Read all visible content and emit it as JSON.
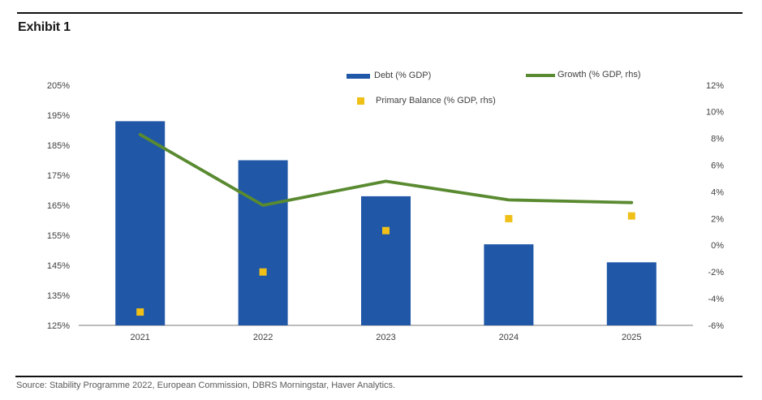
{
  "header": {
    "title": "Exhibit 1"
  },
  "footer": {
    "source": "Source: Stability Programme 2022, European Commission, DBRS Morningstar, Haver Analytics."
  },
  "legend": {
    "debt_label": "Debt (% GDP)",
    "growth_label": "Growth (% GDP, rhs)",
    "primary_balance_label": "Primary Balance (% GDP, rhs)"
  },
  "colors": {
    "bar_blue": "#2057A7",
    "line_green": "#598A30",
    "marker_yellow": "#F0C019",
    "axis_line": "#A6A6A6",
    "tick_text": "#404040",
    "rule_black": "#111111"
  },
  "chart_data": {
    "type": "combo (bar + line + scatter), dual axis",
    "title": "",
    "categories": [
      "2021",
      "2022",
      "2023",
      "2024",
      "2025"
    ],
    "series": [
      {
        "name": "Debt (% GDP)",
        "type": "bar",
        "axis": "left",
        "values": [
          193,
          180,
          168,
          152,
          146
        ]
      },
      {
        "name": "Growth (% GDP, rhs)",
        "type": "line",
        "axis": "right",
        "values": [
          8.3,
          3.0,
          4.8,
          3.4,
          3.2
        ]
      },
      {
        "name": "Primary Balance (% GDP, rhs)",
        "type": "scatter",
        "axis": "right",
        "values": [
          -5.0,
          -2.0,
          1.1,
          2.0,
          2.2
        ]
      }
    ],
    "left_axis": {
      "min": 125,
      "max": 205,
      "ticks": [
        "205%",
        "195%",
        "185%",
        "175%",
        "165%",
        "155%",
        "145%",
        "135%",
        "125%"
      ]
    },
    "right_axis": {
      "min": -6,
      "max": 12,
      "ticks": [
        "12%",
        "10%",
        "8%",
        "6%",
        "4%",
        "2%",
        "0%",
        "-2%",
        "-4%",
        "-6%"
      ]
    },
    "grid": false,
    "legend_position": "top-center, two rows"
  }
}
